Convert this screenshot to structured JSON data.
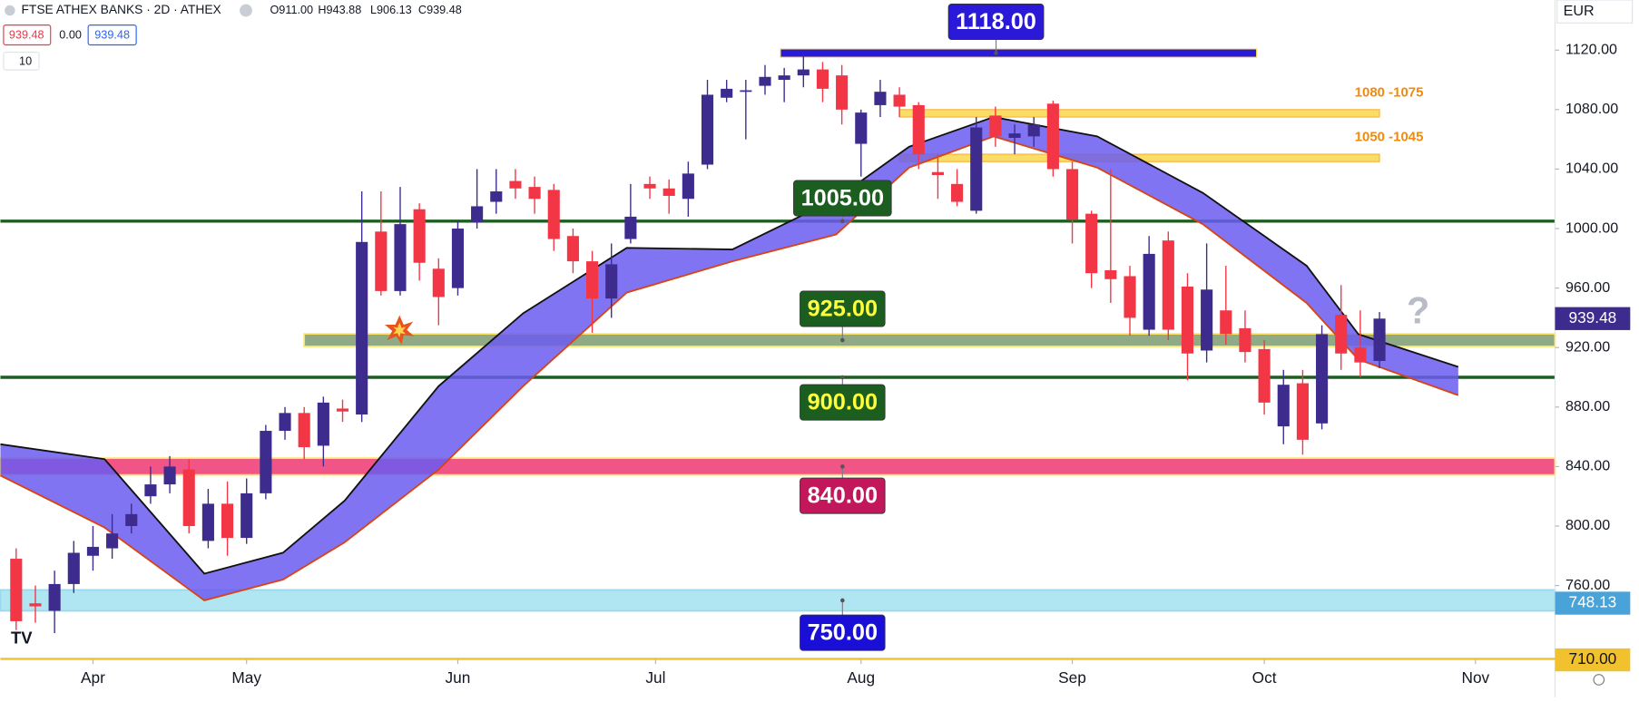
{
  "header": {
    "title": "FTSE ATHEX BANKS · 2D · ATHEX",
    "ohlc": [
      "O911.00",
      "H943.88",
      "L906.13",
      "C939.48"
    ],
    "bid": "939.48",
    "spread": "0.00",
    "ask": "939.48",
    "indicator": "10",
    "currency": "EUR"
  },
  "chart_data": {
    "type": "candlestick",
    "up_color": "#3d2c8d",
    "down_color": "#f23645",
    "open": [
      778,
      748,
      743,
      761,
      780,
      785,
      800,
      820,
      828,
      838,
      790,
      815,
      792,
      822,
      864,
      876,
      854,
      879,
      875,
      998,
      958,
      1013,
      973,
      960,
      1004,
      1018,
      1032,
      1028,
      1026,
      995,
      978,
      953,
      993,
      1030,
      1027,
      1020,
      1043,
      1088,
      1092,
      1096,
      1100,
      1103,
      1107,
      1103,
      1057,
      1083,
      1090,
      1083,
      1038,
      1030,
      1012,
      1076,
      1061,
      1062,
      1084,
      1040,
      1010,
      972,
      968,
      932,
      992,
      961,
      918,
      945,
      933,
      919,
      867,
      896,
      869,
      942,
      920,
      911
    ],
    "high": [
      785,
      760,
      770,
      790,
      800,
      808,
      815,
      840,
      847,
      845,
      825,
      830,
      832,
      868,
      880,
      880,
      887,
      885,
      1025,
      1025,
      1028,
      1017,
      980,
      1005,
      1040,
      1040,
      1040,
      1035,
      1030,
      1000,
      985,
      990,
      1030,
      1035,
      1033,
      1045,
      1100,
      1100,
      1100,
      1110,
      1108,
      1118,
      1112,
      1110,
      1080,
      1100,
      1095,
      1085,
      1050,
      1040,
      1075,
      1082,
      1070,
      1075,
      1086,
      1045,
      1012,
      1040,
      975,
      995,
      998,
      970,
      990,
      975,
      945,
      925,
      905,
      905,
      935,
      962,
      945,
      943.88
    ],
    "low": [
      730,
      735,
      728,
      755,
      770,
      778,
      795,
      815,
      822,
      795,
      785,
      780,
      788,
      818,
      858,
      845,
      840,
      870,
      870,
      955,
      955,
      965,
      935,
      955,
      1000,
      1010,
      1020,
      1010,
      985,
      970,
      930,
      940,
      990,
      1020,
      1010,
      1008,
      1040,
      1085,
      1060,
      1090,
      1085,
      1095,
      1085,
      1070,
      1035,
      1075,
      1075,
      1040,
      1020,
      1015,
      1010,
      1055,
      1050,
      1055,
      1035,
      990,
      960,
      950,
      928,
      928,
      925,
      898,
      910,
      922,
      910,
      875,
      855,
      848,
      865,
      905,
      900,
      906.13
    ],
    "close": [
      736,
      746,
      761,
      782,
      786,
      795,
      808,
      828,
      840,
      800,
      815,
      792,
      822,
      864,
      876,
      853,
      883,
      877,
      991,
      958,
      1003,
      977,
      954,
      1000,
      1015,
      1025,
      1027,
      1020,
      993,
      978,
      953,
      976,
      1008,
      1027,
      1022,
      1037,
      1090,
      1094,
      1093,
      1102,
      1103,
      1107,
      1094,
      1080,
      1078,
      1092,
      1082,
      1050,
      1036,
      1018,
      1068,
      1062,
      1064,
      1070,
      1040,
      1006,
      970,
      966,
      940,
      983,
      932,
      916,
      959,
      929,
      917,
      883,
      895,
      858,
      929,
      916,
      910,
      939.48
    ],
    "xlim": [
      -0.82,
      80.14
    ],
    "ylim": [
      710,
      1153.7
    ],
    "xticks": [
      {
        "value": 4,
        "label": "Apr"
      },
      {
        "value": 12,
        "label": "May"
      },
      {
        "value": 23,
        "label": "Jun"
      },
      {
        "value": 33.3,
        "label": "Jul"
      },
      {
        "value": 44,
        "label": "Aug"
      },
      {
        "value": 55,
        "label": "Sep"
      },
      {
        "value": 65,
        "label": "Oct"
      },
      {
        "value": 76,
        "label": "Nov"
      }
    ],
    "yticks": [
      {
        "value": 760,
        "label": "760.00"
      },
      {
        "value": 800,
        "label": "800.00"
      },
      {
        "value": 840,
        "label": "840.00"
      },
      {
        "value": 880,
        "label": "880.00"
      },
      {
        "value": 920,
        "label": "920.00"
      },
      {
        "value": 960,
        "label": "960.00"
      },
      {
        "value": 1000,
        "label": "1000.00"
      },
      {
        "value": 1040,
        "label": "1040.00"
      },
      {
        "value": 1080,
        "label": "1080.00"
      },
      {
        "value": 1120,
        "label": "1120.00"
      }
    ],
    "ribbon": {
      "x": [
        -0.82,
        4.6,
        9.8,
        13.9,
        17.1,
        22.0,
        26.4,
        31.8,
        37.3,
        42.7,
        46.5,
        50.9,
        56.3,
        61.8,
        67.2,
        69.9,
        75.1
      ],
      "upper": [
        855,
        845,
        768,
        782,
        817,
        894,
        943,
        987,
        986,
        1020,
        1055,
        1075,
        1062,
        1024,
        975,
        929,
        907
      ],
      "lower": [
        834,
        799,
        750,
        764,
        789,
        838,
        894,
        957,
        978,
        996,
        1041,
        1062,
        1041,
        1003,
        950,
        912,
        888
      ],
      "fill": "#6b5cf0",
      "upper_color": "#111111",
      "lower_color": "#d84315"
    },
    "levels": [
      {
        "value": 1118,
        "label": "1118.00",
        "color": "#2a1ad8",
        "text_color": "#ffffff",
        "style": "bar",
        "x_range": [
          39.8,
          64.6
        ]
      },
      {
        "value": 1005,
        "label": "1005.00",
        "color": "#1b5e20",
        "text_color": "#ffffff",
        "style": "line"
      },
      {
        "value": 925,
        "label": "925.00",
        "color": "#1b5e20",
        "text_color": "#ffff3b",
        "style": "band",
        "band_color": "#86a17a",
        "x_range": [
          15,
          80.14
        ]
      },
      {
        "value": 900,
        "label": "900.00",
        "color": "#1b5e20",
        "text_color": "#ffff3b",
        "style": "line"
      },
      {
        "value": 840,
        "label": "840.00",
        "color": "#c2185b",
        "text_color": "#ffffff",
        "style": "band",
        "band_color": "#f0427a"
      },
      {
        "value": 750,
        "label": "750.00",
        "color": "#1a0fd6",
        "text_color": "#ffffff",
        "style": "band",
        "band_color": "#a8e4f0"
      }
    ],
    "zones": [
      {
        "label": "1080 -1075",
        "high": 1080,
        "low": 1075,
        "x_range": [
          46,
          71
        ]
      },
      {
        "label": "1050 -1045",
        "high": 1050,
        "low": 1045,
        "x_range": [
          46,
          71
        ]
      }
    ],
    "price_labels": [
      {
        "value": 939.48,
        "label": "939.48",
        "color": "#3d2c8d"
      },
      {
        "value": 748.13,
        "label": "748.13",
        "color": "#4aa3d8"
      },
      {
        "value": 710,
        "label": "710.00",
        "color": "#f2c12e"
      }
    ],
    "annotation": "?"
  }
}
